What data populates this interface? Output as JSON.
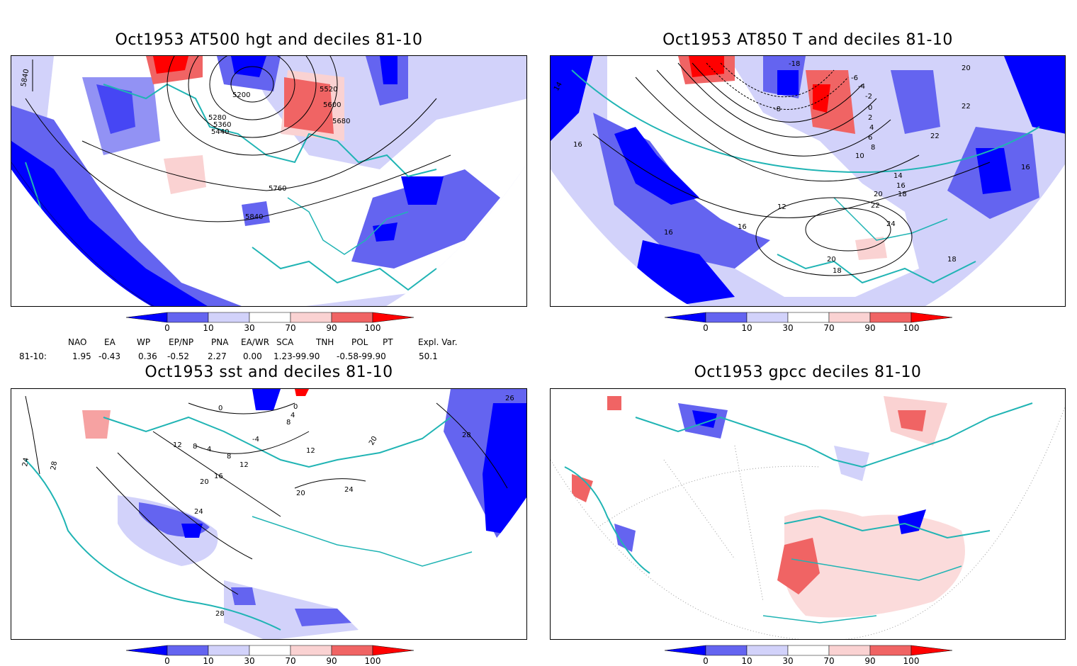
{
  "panels": [
    {
      "id": "p1",
      "title": "Oct1953 AT500 hgt and deciles 81-10",
      "contour_labels": [
        "5840",
        "5200",
        "5280",
        "5360",
        "5440",
        "5520",
        "5600",
        "5680",
        "5760",
        "5840"
      ]
    },
    {
      "id": "p2",
      "title": "Oct1953 AT850 T and deciles 81-10",
      "contour_labels": [
        "14",
        "16",
        "-18",
        "-8",
        "-6",
        "-4",
        "-2",
        "0",
        "2",
        "4",
        "6",
        "8",
        "10",
        "12",
        "14",
        "16",
        "18",
        "20",
        "22",
        "24",
        "20",
        "18",
        "16",
        "16",
        "18",
        "20",
        "22",
        "22",
        "16"
      ]
    },
    {
      "id": "p3",
      "title": "Oct1953 sst and deciles 81-10",
      "contour_labels": [
        "24",
        "28",
        "12",
        "8",
        "4",
        "0",
        "-4",
        "8",
        "12",
        "16",
        "20",
        "24",
        "28",
        "26",
        "28",
        "20",
        "24",
        "20",
        "12",
        "8",
        "4",
        "0"
      ]
    },
    {
      "id": "p4",
      "title": "Oct1953 gpcc deciles 81-10",
      "contour_labels": []
    }
  ],
  "colorbar": {
    "labels": [
      "0",
      "10",
      "30",
      "70",
      "90",
      "100"
    ],
    "colors": [
      "#0000ff",
      "#6464f0",
      "#d2d2fa",
      "#ffffff",
      "#fad2d2",
      "#f06464",
      "#ff0000"
    ]
  },
  "teleconnections": {
    "headers": [
      "NAO",
      "EA",
      "WP",
      "EP/NP",
      "PNA",
      "EA/WR",
      "SCA",
      "TNH",
      "POL",
      "PT",
      "Expl. Var."
    ],
    "row_label": "81-10:",
    "values": [
      "1.95",
      "-0.43",
      "0.36",
      "-0.52",
      "2.27",
      "0.00",
      "1.23-99.90",
      "-0.58-99.90",
      "50.1"
    ]
  },
  "colors": {
    "coast": "#20b4b4",
    "strong_neg": "#0000ff",
    "mid_neg": "#6464f0",
    "light_neg": "#d2d2fa",
    "light_pos": "#fad2d2",
    "mid_pos": "#f06464",
    "strong_pos": "#ff0000"
  }
}
